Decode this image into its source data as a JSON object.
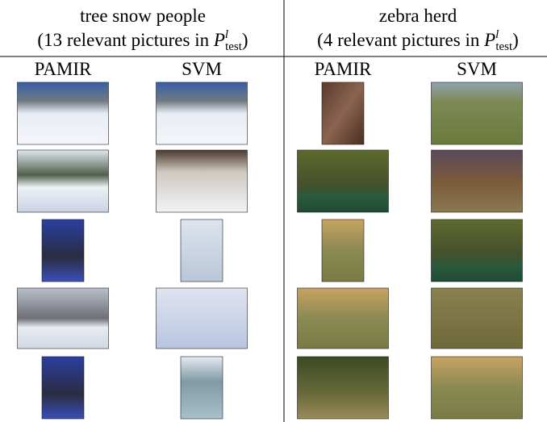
{
  "queries": [
    {
      "name": "tree snow people",
      "caption": {
        "before": "(13 relevant pictures in ",
        "symbol": "P",
        "sup": "l",
        "sub": "test",
        "after": ")"
      },
      "methods": [
        "PAMIR",
        "SVM"
      ]
    },
    {
      "name": "zebra herd",
      "caption": {
        "before": "(4 relevant pictures in ",
        "symbol": "P",
        "sup": "l",
        "sub": "test",
        "after": ")"
      },
      "methods": [
        "PAMIR",
        "SVM"
      ]
    }
  ]
}
